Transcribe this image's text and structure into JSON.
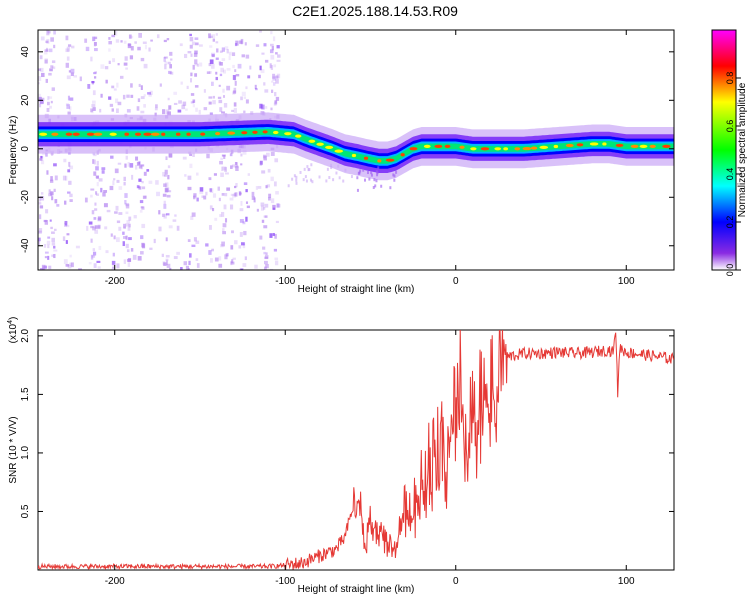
{
  "title": "C2E1.2025.188.14.53.R09",
  "chart_data": [
    {
      "type": "heatmap",
      "xlabel": "Height of straight line (km)",
      "ylabel": "Frequency (Hz)",
      "xlim": [
        -245,
        128
      ],
      "ylim": [
        -50,
        49
      ],
      "xticks": [
        -200,
        -100,
        0,
        100
      ],
      "yticks": [
        -40,
        -20,
        0,
        20,
        40
      ],
      "colorbar": {
        "label": "Normalized spectral amplitude",
        "range": [
          0,
          1
        ],
        "ticks": [
          "0.0",
          "0.2",
          "0.4",
          "0.6",
          "0.8"
        ],
        "tick_values": [
          0,
          0.2,
          0.4,
          0.6,
          0.8
        ],
        "colormap": [
          "#ffffff",
          "#8a2be2",
          "#0000ff",
          "#00ffff",
          "#00ff00",
          "#ffff00",
          "#ff0000",
          "#ff00ff"
        ]
      },
      "ridge": {
        "x": [
          -245,
          -200,
          -150,
          -110,
          -95,
          -88,
          -80,
          -72,
          -65,
          -58,
          -52,
          -45,
          -40,
          -35,
          -30,
          -25,
          -20,
          -15,
          -10,
          -5,
          0,
          10,
          20,
          40,
          60,
          80,
          90,
          100,
          110,
          128
        ],
        "y": [
          6,
          6,
          6,
          7,
          6,
          4,
          2,
          0,
          -2,
          -3,
          -4,
          -5,
          -5,
          -4,
          -2,
          0,
          1,
          1,
          1,
          1,
          1,
          0,
          0,
          0,
          1,
          2,
          2,
          1,
          1,
          1
        ]
      },
      "noise_region": [
        -245,
        -105
      ]
    },
    {
      "type": "line",
      "xlabel": "Height of straight line (km)",
      "ylabel": "SNR (10 * V/V)",
      "multiplier_label": "(x10",
      "multiplier_exp": "4",
      "xlim": [
        -245,
        128
      ],
      "ylim": [
        0,
        2.05
      ],
      "xticks": [
        -200,
        -100,
        0,
        100
      ],
      "yticks": [
        0.5,
        1.0,
        1.5,
        2.0
      ],
      "ytick_labels": [
        "0.5",
        "1.0",
        "1.5",
        "2.0"
      ],
      "color": "#e53935",
      "series": [
        {
          "x": [
            -245,
            -200,
            -150,
            -110,
            -100,
            -90,
            -80,
            -70,
            -65,
            -60,
            -57,
            -55,
            -52,
            -50,
            -45,
            -40,
            -35,
            -30,
            -25,
            -20,
            -15,
            -10,
            -5,
            -2,
            0,
            3,
            5,
            8,
            10,
            15,
            20,
            25,
            30,
            40,
            50,
            60,
            70,
            80,
            90,
            92,
            94,
            95,
            96,
            100,
            110,
            120,
            128
          ],
          "y": [
            0.03,
            0.03,
            0.03,
            0.03,
            0.04,
            0.06,
            0.12,
            0.18,
            0.28,
            0.55,
            0.7,
            0.45,
            0.3,
            0.5,
            0.35,
            0.25,
            0.2,
            0.55,
            0.55,
            0.8,
            1.0,
            1.05,
            1.2,
            1.4,
            1.5,
            1.95,
            1.4,
            1.2,
            1.35,
            1.55,
            1.65,
            1.78,
            1.82,
            1.85,
            1.85,
            1.86,
            1.85,
            1.86,
            1.88,
            1.86,
            2.02,
            1.5,
            1.9,
            1.86,
            1.84,
            1.82,
            1.8
          ]
        }
      ]
    }
  ]
}
